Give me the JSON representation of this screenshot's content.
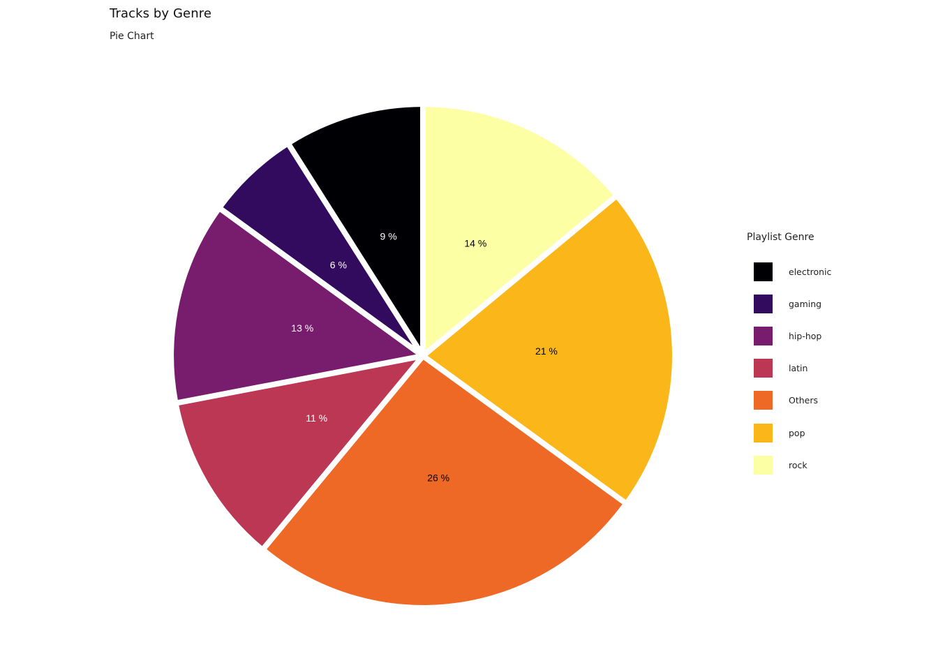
{
  "chart_data": {
    "type": "pie",
    "title": "Tracks by Genre",
    "subtitle": "Pie Chart",
    "legend_title": "Playlist Genre",
    "legend_position": "right",
    "categories": [
      "electronic",
      "gaming",
      "hip-hop",
      "latin",
      "Others",
      "pop",
      "rock"
    ],
    "values": [
      9,
      6,
      13,
      11,
      26,
      21,
      14
    ],
    "value_labels": [
      "9 %",
      "6 %",
      "13 %",
      "11 %",
      "26 %",
      "21 %",
      "14 %"
    ],
    "colors": [
      "#000004",
      "#320A5E",
      "#781C6D",
      "#BB3754",
      "#ED6925",
      "#FBB61A",
      "#FCFFA4"
    ],
    "label_colors": [
      "#FFFFFF",
      "#FFFFFF",
      "#FFFFFF",
      "#FFFFFF",
      "#000000",
      "#000000",
      "#000000"
    ],
    "slice_order_clockwise_from_top": [
      "rock",
      "pop",
      "Others",
      "latin",
      "hip-hop",
      "gaming",
      "electronic"
    ]
  }
}
